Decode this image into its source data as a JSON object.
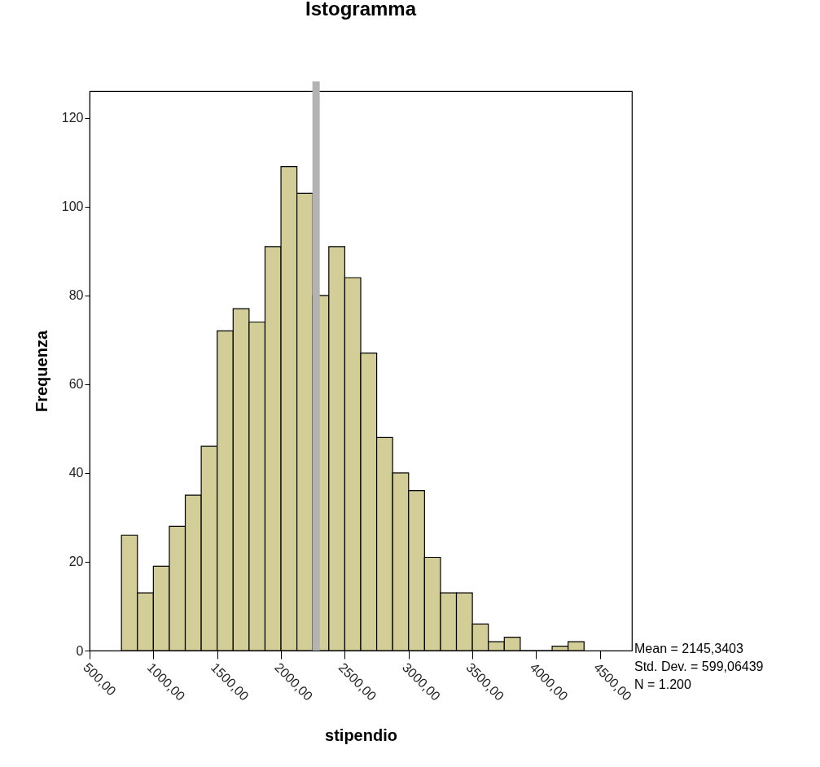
{
  "chart_data": {
    "type": "histogram",
    "title": "Istogramma",
    "xlabel": "stipendio",
    "ylabel": "Frequenza",
    "bins": [
      750,
      875,
      1000,
      1125,
      1250,
      1375,
      1500,
      1625,
      1750,
      1875,
      2000,
      2125,
      2250,
      2375,
      2500,
      2625,
      2750,
      2875,
      3000,
      3125,
      3250,
      3375,
      3500,
      3625,
      3750,
      3875,
      4000,
      4125,
      4250,
      4375
    ],
    "values": [
      26,
      13,
      19,
      28,
      35,
      46,
      72,
      77,
      74,
      91,
      109,
      103,
      80,
      91,
      84,
      67,
      48,
      40,
      36,
      21,
      13,
      13,
      6,
      2,
      3,
      0,
      0,
      1,
      2
    ],
    "color": "#d3ce98",
    "xlim": [
      500,
      4750
    ],
    "xticks": [
      {
        "value": 500,
        "label": "500,00"
      },
      {
        "value": 1000,
        "label": "1000,00"
      },
      {
        "value": 1500,
        "label": "1500,00"
      },
      {
        "value": 2000,
        "label": "2000,00"
      },
      {
        "value": 2500,
        "label": "2500,00"
      },
      {
        "value": 3000,
        "label": "3000,00"
      },
      {
        "value": 3500,
        "label": "3500,00"
      },
      {
        "value": 4000,
        "label": "4000,00"
      },
      {
        "value": 4500,
        "label": "4500,00"
      }
    ],
    "ylim": [
      0,
      126
    ],
    "yticks": [
      0,
      20,
      40,
      60,
      80,
      100,
      120
    ],
    "ref_lines": [
      {
        "axis": "x",
        "value": 2275,
        "color": "#b3b3b3"
      }
    ],
    "grid": false,
    "annotations": [
      "Mean = 2145,3403",
      "Std. Dev. = 599,06439",
      "N = 1.200"
    ]
  }
}
